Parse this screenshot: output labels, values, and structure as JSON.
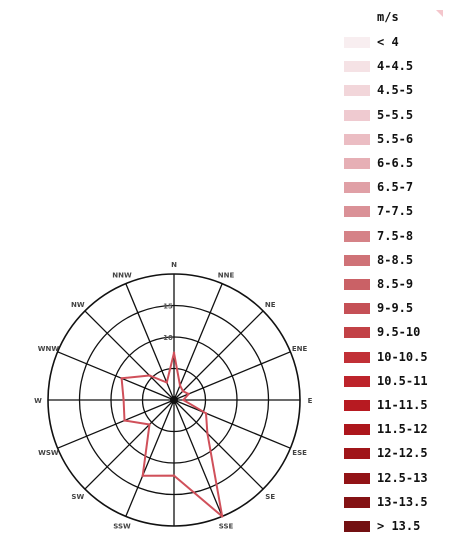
{
  "chart_data": {
    "type": "radar",
    "directions": [
      "N",
      "NNE",
      "NE",
      "ENE",
      "E",
      "ESE",
      "SE",
      "SSE",
      "S",
      "SSW",
      "SW",
      "WSW",
      "W",
      "WNW",
      "NW",
      "NNW"
    ],
    "direction_labels": [
      "N",
      "NNE",
      "NE",
      "ENE",
      "E",
      "ESE",
      "SE",
      "SSE",
      "",
      "SSW",
      "SW",
      "WSW",
      "W",
      "WNW",
      "NW",
      "NNW"
    ],
    "radial_tick_labels": [
      "10",
      "15"
    ],
    "radial_max": 20,
    "series": [
      {
        "color": "#d0505a",
        "values": [
          7.5,
          2.5,
          2.0,
          2.5,
          1.5,
          5.5,
          7.5,
          20.0,
          12.0,
          13.0,
          5.5,
          8.5,
          8.0,
          9.0,
          5.5,
          3.0
        ]
      }
    ],
    "legend_title": "m/s",
    "legend": [
      {
        "label": "< 4",
        "color": "#f8eef0"
      },
      {
        "label": "4-4.5",
        "color": "#f5e2e5"
      },
      {
        "label": "4.5-5",
        "color": "#f2d6da"
      },
      {
        "label": "5-5.5",
        "color": "#efcad0"
      },
      {
        "label": "5.5-6",
        "color": "#ebbdc3"
      },
      {
        "label": "6-6.5",
        "color": "#e6afb5"
      },
      {
        "label": "6.5-7",
        "color": "#e0a0a6"
      },
      {
        "label": "7-7.5",
        "color": "#da9197"
      },
      {
        "label": "7.5-8",
        "color": "#d58287"
      },
      {
        "label": "8-8.5",
        "color": "#cf7277"
      },
      {
        "label": "8.5-9",
        "color": "#ca6166"
      },
      {
        "label": "9-9.5",
        "color": "#c55056"
      },
      {
        "label": "9.5-10",
        "color": "#c24146"
      },
      {
        "label": "10-10.5",
        "color": "#c13036"
      },
      {
        "label": "10.5-11",
        "color": "#bd242b"
      },
      {
        "label": "11-11.5",
        "color": "#b71a21"
      },
      {
        "label": "11.5-12",
        "color": "#ad161c"
      },
      {
        "label": "12-12.5",
        "color": "#a01519"
      },
      {
        "label": "12.5-13",
        "color": "#921316"
      },
      {
        "label": "13-13.5",
        "color": "#841214"
      },
      {
        "label": "> 13.5",
        "color": "#731012"
      }
    ]
  }
}
